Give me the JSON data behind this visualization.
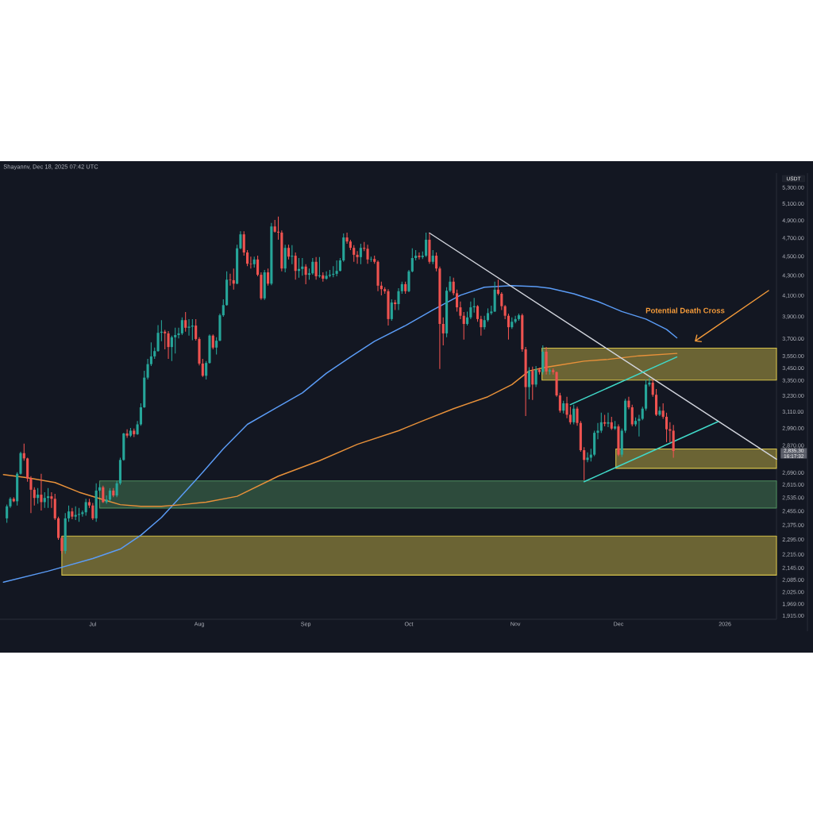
{
  "chart_data": {
    "type": "candlestick",
    "ylabel": "USDT",
    "log": true,
    "xlim": [
      "2025-06-04",
      "2026-01-16"
    ],
    "ylim": [
      1900,
      5490
    ],
    "xticks": [
      {
        "value": "2025-07-01",
        "label": "Jul"
      },
      {
        "value": "2025-08-01",
        "label": "Aug"
      },
      {
        "value": "2025-09-01",
        "label": "Sep"
      },
      {
        "value": "2025-10-01",
        "label": "Oct"
      },
      {
        "value": "2025-11-01",
        "label": "Nov"
      },
      {
        "value": "2025-12-01",
        "label": "Dec"
      },
      {
        "value": "2026-01-01",
        "label": "2026"
      }
    ],
    "yticks": [
      {
        "value": 1915,
        "label": "1,915.00"
      },
      {
        "value": 1969,
        "label": "1,969.00"
      },
      {
        "value": 2025,
        "label": "2,025.00"
      },
      {
        "value": 2085,
        "label": "2,085.00"
      },
      {
        "value": 2145,
        "label": "2,145.00"
      },
      {
        "value": 2215,
        "label": "2,215.00"
      },
      {
        "value": 2295,
        "label": "2,295.00"
      },
      {
        "value": 2375,
        "label": "2,375.00"
      },
      {
        "value": 2455,
        "label": "2,455.00"
      },
      {
        "value": 2535,
        "label": "2,535.00"
      },
      {
        "value": 2615,
        "label": "2,615.00"
      },
      {
        "value": 2690,
        "label": "2,690.00"
      },
      {
        "value": 2870,
        "label": "2,870.00"
      },
      {
        "value": 2990,
        "label": "2,990.00"
      },
      {
        "value": 3110,
        "label": "3,110.00"
      },
      {
        "value": 3230,
        "label": "3,230.00"
      },
      {
        "value": 3350,
        "label": "3,350.00"
      },
      {
        "value": 3450,
        "label": "3,450.00"
      },
      {
        "value": 3550,
        "label": "3,550.00"
      },
      {
        "value": 3700,
        "label": "3,700.00"
      },
      {
        "value": 3900,
        "label": "3,900.00"
      },
      {
        "value": 4100,
        "label": "4,100.00"
      },
      {
        "value": 4300,
        "label": "4,300.00"
      },
      {
        "value": 4500,
        "label": "4,500.00"
      },
      {
        "value": 4700,
        "label": "4,700.00"
      },
      {
        "value": 4900,
        "label": "4,900.00"
      },
      {
        "value": 5100,
        "label": "5,100.00"
      },
      {
        "value": 5300,
        "label": "5,300.00"
      }
    ],
    "x": [
      "2025-06-06",
      "2025-06-07",
      "2025-06-08",
      "2025-06-09",
      "2025-06-10",
      "2025-06-11",
      "2025-06-12",
      "2025-06-13",
      "2025-06-14",
      "2025-06-15",
      "2025-06-16",
      "2025-06-17",
      "2025-06-18",
      "2025-06-19",
      "2025-06-20",
      "2025-06-21",
      "2025-06-22",
      "2025-06-23",
      "2025-06-24",
      "2025-06-25",
      "2025-06-26",
      "2025-06-27",
      "2025-06-28",
      "2025-06-29",
      "2025-06-30",
      "2025-07-01",
      "2025-07-02",
      "2025-07-03",
      "2025-07-04",
      "2025-07-05",
      "2025-07-06",
      "2025-07-07",
      "2025-07-08",
      "2025-07-09",
      "2025-07-10",
      "2025-07-11",
      "2025-07-12",
      "2025-07-13",
      "2025-07-14",
      "2025-07-15",
      "2025-07-16",
      "2025-07-17",
      "2025-07-18",
      "2025-07-19",
      "2025-07-20",
      "2025-07-21",
      "2025-07-22",
      "2025-07-23",
      "2025-07-24",
      "2025-07-25",
      "2025-07-26",
      "2025-07-27",
      "2025-07-28",
      "2025-07-29",
      "2025-07-30",
      "2025-07-31",
      "2025-08-01",
      "2025-08-02",
      "2025-08-03",
      "2025-08-04",
      "2025-08-05",
      "2025-08-06",
      "2025-08-07",
      "2025-08-08",
      "2025-08-09",
      "2025-08-10",
      "2025-08-11",
      "2025-08-12",
      "2025-08-13",
      "2025-08-14",
      "2025-08-15",
      "2025-08-16",
      "2025-08-17",
      "2025-08-18",
      "2025-08-19",
      "2025-08-20",
      "2025-08-21",
      "2025-08-22",
      "2025-08-23",
      "2025-08-24",
      "2025-08-25",
      "2025-08-26",
      "2025-08-27",
      "2025-08-28",
      "2025-08-29",
      "2025-08-30",
      "2025-08-31",
      "2025-09-01",
      "2025-09-02",
      "2025-09-03",
      "2025-09-04",
      "2025-09-05",
      "2025-09-06",
      "2025-09-07",
      "2025-09-08",
      "2025-09-09",
      "2025-09-10",
      "2025-09-11",
      "2025-09-12",
      "2025-09-13",
      "2025-09-14",
      "2025-09-15",
      "2025-09-16",
      "2025-09-17",
      "2025-09-18",
      "2025-09-19",
      "2025-09-20",
      "2025-09-21",
      "2025-09-22",
      "2025-09-23",
      "2025-09-24",
      "2025-09-25",
      "2025-09-26",
      "2025-09-27",
      "2025-09-28",
      "2025-09-29",
      "2025-09-30",
      "2025-10-01",
      "2025-10-02",
      "2025-10-03",
      "2025-10-04",
      "2025-10-05",
      "2025-10-06",
      "2025-10-07",
      "2025-10-08",
      "2025-10-09",
      "2025-10-10",
      "2025-10-11",
      "2025-10-12",
      "2025-10-13",
      "2025-10-14",
      "2025-10-15",
      "2025-10-16",
      "2025-10-17",
      "2025-10-18",
      "2025-10-19",
      "2025-10-20",
      "2025-10-21",
      "2025-10-22",
      "2025-10-23",
      "2025-10-24",
      "2025-10-25",
      "2025-10-26",
      "2025-10-27",
      "2025-10-28",
      "2025-10-29",
      "2025-10-30",
      "2025-10-31",
      "2025-11-01",
      "2025-11-02",
      "2025-11-03",
      "2025-11-04",
      "2025-11-05",
      "2025-11-06",
      "2025-11-07",
      "2025-11-08",
      "2025-11-09",
      "2025-11-10",
      "2025-11-11",
      "2025-11-12",
      "2025-11-13",
      "2025-11-14",
      "2025-11-15",
      "2025-11-16",
      "2025-11-17",
      "2025-11-18",
      "2025-11-19",
      "2025-11-20",
      "2025-11-21",
      "2025-11-22",
      "2025-11-23",
      "2025-11-24",
      "2025-11-25",
      "2025-11-26",
      "2025-11-27",
      "2025-11-28",
      "2025-11-29",
      "2025-11-30",
      "2025-12-01",
      "2025-12-02",
      "2025-12-03",
      "2025-12-04",
      "2025-12-05",
      "2025-12-06",
      "2025-12-07",
      "2025-12-08",
      "2025-12-09",
      "2025-12-10",
      "2025-12-11",
      "2025-12-12",
      "2025-12-13",
      "2025-12-14",
      "2025-12-15",
      "2025-12-16",
      "2025-12-17"
    ],
    "ohlc": [
      [
        2415,
        2495,
        2390,
        2485
      ],
      [
        2485,
        2540,
        2475,
        2530
      ],
      [
        2530,
        2540,
        2510,
        2515
      ],
      [
        2515,
        2695,
        2490,
        2685
      ],
      [
        2685,
        2830,
        2680,
        2820
      ],
      [
        2820,
        2885,
        2770,
        2785
      ],
      [
        2785,
        2790,
        2635,
        2655
      ],
      [
        2655,
        2670,
        2445,
        2585
      ],
      [
        2585,
        2600,
        2490,
        2535
      ],
      [
        2535,
        2595,
        2500,
        2555
      ],
      [
        2555,
        2685,
        2460,
        2510
      ],
      [
        2510,
        2570,
        2475,
        2535
      ],
      [
        2535,
        2595,
        2475,
        2545
      ],
      [
        2545,
        2570,
        2475,
        2530
      ],
      [
        2530,
        2560,
        2405,
        2415
      ],
      [
        2415,
        2425,
        2295,
        2305
      ],
      [
        2305,
        2315,
        2220,
        2235
      ],
      [
        2235,
        2445,
        2220,
        2415
      ],
      [
        2415,
        2490,
        2395,
        2455
      ],
      [
        2455,
        2475,
        2410,
        2425
      ],
      [
        2425,
        2485,
        2405,
        2435
      ],
      [
        2435,
        2475,
        2395,
        2440
      ],
      [
        2440,
        2460,
        2425,
        2450
      ],
      [
        2450,
        2530,
        2430,
        2510
      ],
      [
        2510,
        2530,
        2475,
        2490
      ],
      [
        2490,
        2505,
        2405,
        2415
      ],
      [
        2415,
        2625,
        2395,
        2580
      ],
      [
        2580,
        2620,
        2570,
        2600
      ],
      [
        2600,
        2610,
        2505,
        2510
      ],
      [
        2510,
        2550,
        2500,
        2525
      ],
      [
        2525,
        2595,
        2515,
        2580
      ],
      [
        2580,
        2595,
        2540,
        2550
      ],
      [
        2550,
        2640,
        2540,
        2625
      ],
      [
        2625,
        2790,
        2615,
        2775
      ],
      [
        2775,
        2960,
        2770,
        2955
      ],
      [
        2955,
        2985,
        2925,
        2940
      ],
      [
        2940,
        2995,
        2930,
        2975
      ],
      [
        2975,
        2990,
        2930,
        2950
      ],
      [
        2950,
        3045,
        2945,
        3020
      ],
      [
        3020,
        3175,
        3010,
        3145
      ],
      [
        3145,
        3430,
        3140,
        3375
      ],
      [
        3375,
        3530,
        3360,
        3485
      ],
      [
        3485,
        3670,
        3470,
        3550
      ],
      [
        3550,
        3625,
        3530,
        3595
      ],
      [
        3595,
        3825,
        3590,
        3755
      ],
      [
        3755,
        3870,
        3680,
        3765
      ],
      [
        3765,
        3780,
        3610,
        3750
      ],
      [
        3750,
        3770,
        3530,
        3630
      ],
      [
        3630,
        3730,
        3510,
        3715
      ],
      [
        3715,
        3800,
        3575,
        3735
      ],
      [
        3735,
        3800,
        3705,
        3750
      ],
      [
        3750,
        3895,
        3735,
        3870
      ],
      [
        3870,
        3945,
        3765,
        3800
      ],
      [
        3800,
        3880,
        3730,
        3810
      ],
      [
        3810,
        3880,
        3690,
        3820
      ],
      [
        3820,
        3880,
        3685,
        3700
      ],
      [
        3700,
        3715,
        3475,
        3490
      ],
      [
        3490,
        3530,
        3380,
        3390
      ],
      [
        3390,
        3510,
        3360,
        3495
      ],
      [
        3495,
        3740,
        3490,
        3730
      ],
      [
        3730,
        3740,
        3610,
        3625
      ],
      [
        3625,
        3715,
        3565,
        3685
      ],
      [
        3685,
        3930,
        3680,
        3915
      ],
      [
        3915,
        4065,
        3900,
        4010
      ],
      [
        4010,
        4345,
        4005,
        4260
      ],
      [
        4260,
        4320,
        4200,
        4255
      ],
      [
        4255,
        4375,
        4160,
        4220
      ],
      [
        4220,
        4630,
        4215,
        4590
      ],
      [
        4590,
        4780,
        4580,
        4745
      ],
      [
        4745,
        4780,
        4510,
        4545
      ],
      [
        4545,
        4570,
        4400,
        4425
      ],
      [
        4425,
        4500,
        4375,
        4420
      ],
      [
        4420,
        4500,
        4385,
        4470
      ],
      [
        4470,
        4510,
        4295,
        4310
      ],
      [
        4310,
        4335,
        4060,
        4075
      ],
      [
        4075,
        4360,
        4060,
        4335
      ],
      [
        4335,
        4375,
        4200,
        4220
      ],
      [
        4220,
        4875,
        4205,
        4835
      ],
      [
        4835,
        4910,
        4765,
        4775
      ],
      [
        4775,
        4950,
        4685,
        4765
      ],
      [
        4765,
        4790,
        4345,
        4375
      ],
      [
        4375,
        4630,
        4335,
        4595
      ],
      [
        4595,
        4630,
        4470,
        4500
      ],
      [
        4500,
        4625,
        4420,
        4510
      ],
      [
        4510,
        4545,
        4260,
        4350
      ],
      [
        4350,
        4485,
        4280,
        4370
      ],
      [
        4370,
        4485,
        4300,
        4395
      ],
      [
        4395,
        4420,
        4215,
        4310
      ],
      [
        4310,
        4375,
        4260,
        4325
      ],
      [
        4325,
        4485,
        4310,
        4445
      ],
      [
        4445,
        4495,
        4260,
        4295
      ],
      [
        4295,
        4495,
        4280,
        4305
      ],
      [
        4305,
        4335,
        4240,
        4270
      ],
      [
        4270,
        4345,
        4260,
        4300
      ],
      [
        4300,
        4360,
        4285,
        4310
      ],
      [
        4310,
        4400,
        4285,
        4320
      ],
      [
        4320,
        4460,
        4295,
        4350
      ],
      [
        4350,
        4485,
        4345,
        4460
      ],
      [
        4460,
        4755,
        4445,
        4710
      ],
      [
        4710,
        4765,
        4640,
        4665
      ],
      [
        4665,
        4685,
        4570,
        4595
      ],
      [
        4595,
        4625,
        4445,
        4520
      ],
      [
        4520,
        4560,
        4425,
        4495
      ],
      [
        4495,
        4640,
        4420,
        4595
      ],
      [
        4595,
        4660,
        4560,
        4585
      ],
      [
        4585,
        4630,
        4425,
        4470
      ],
      [
        4470,
        4500,
        4445,
        4475
      ],
      [
        4475,
        4510,
        4425,
        4445
      ],
      [
        4445,
        4460,
        4145,
        4200
      ],
      [
        4200,
        4240,
        4105,
        4165
      ],
      [
        4165,
        4185,
        4120,
        4145
      ],
      [
        4145,
        4165,
        3820,
        3880
      ],
      [
        3880,
        4065,
        3865,
        4035
      ],
      [
        4035,
        4060,
        3965,
        4020
      ],
      [
        4020,
        4175,
        3965,
        4145
      ],
      [
        4145,
        4240,
        4120,
        4215
      ],
      [
        4215,
        4240,
        4120,
        4145
      ],
      [
        4145,
        4360,
        4135,
        4345
      ],
      [
        4345,
        4590,
        4335,
        4485
      ],
      [
        4485,
        4570,
        4460,
        4510
      ],
      [
        4510,
        4545,
        4470,
        4495
      ],
      [
        4495,
        4555,
        4475,
        4510
      ],
      [
        4510,
        4765,
        4495,
        4685
      ],
      [
        4685,
        4755,
        4425,
        4445
      ],
      [
        4445,
        4570,
        4420,
        4510
      ],
      [
        4510,
        4545,
        4345,
        4375
      ],
      [
        4375,
        4395,
        3445,
        3835
      ],
      [
        3835,
        3895,
        3645,
        3750
      ],
      [
        3750,
        4185,
        3715,
        4150
      ],
      [
        4150,
        4295,
        4135,
        4240
      ],
      [
        4240,
        4280,
        4105,
        4125
      ],
      [
        4125,
        4160,
        3950,
        3990
      ],
      [
        3990,
        4045,
        3880,
        3910
      ],
      [
        3910,
        3945,
        3695,
        3835
      ],
      [
        3835,
        3950,
        3820,
        3895
      ],
      [
        3895,
        4045,
        3880,
        3990
      ],
      [
        3990,
        4080,
        3940,
        4000
      ],
      [
        4000,
        4010,
        3855,
        3880
      ],
      [
        3880,
        3910,
        3730,
        3805
      ],
      [
        3805,
        3910,
        3785,
        3870
      ],
      [
        3870,
        3980,
        3855,
        3935
      ],
      [
        3935,
        4005,
        3920,
        3950
      ],
      [
        3950,
        4240,
        3945,
        4160
      ],
      [
        4160,
        4260,
        4105,
        4120
      ],
      [
        4120,
        4135,
        3965,
        4000
      ],
      [
        4000,
        4010,
        3880,
        3910
      ],
      [
        3910,
        3930,
        3695,
        3805
      ],
      [
        3805,
        3895,
        3790,
        3855
      ],
      [
        3855,
        3910,
        3840,
        3880
      ],
      [
        3880,
        3930,
        3865,
        3915
      ],
      [
        3915,
        3930,
        3590,
        3610
      ],
      [
        3610,
        3630,
        3080,
        3300
      ],
      [
        3300,
        3460,
        3205,
        3430
      ],
      [
        3430,
        3465,
        3200,
        3320
      ],
      [
        3320,
        3470,
        3300,
        3440
      ],
      [
        3440,
        3455,
        3400,
        3420
      ],
      [
        3420,
        3645,
        3400,
        3590
      ],
      [
        3590,
        3630,
        3400,
        3425
      ],
      [
        3425,
        3450,
        3400,
        3435
      ],
      [
        3435,
        3450,
        3400,
        3420
      ],
      [
        3420,
        3425,
        3225,
        3235
      ],
      [
        3235,
        3255,
        3105,
        3120
      ],
      [
        3120,
        3195,
        3100,
        3175
      ],
      [
        3175,
        3225,
        3065,
        3090
      ],
      [
        3090,
        3150,
        3020,
        3035
      ],
      [
        3035,
        3165,
        3020,
        3135
      ],
      [
        3135,
        3150,
        3010,
        3030
      ],
      [
        3030,
        3045,
        2830,
        2840
      ],
      [
        2840,
        2860,
        2645,
        2775
      ],
      [
        2775,
        2825,
        2760,
        2790
      ],
      [
        2790,
        2850,
        2765,
        2810
      ],
      [
        2810,
        2975,
        2800,
        2960
      ],
      [
        2960,
        3030,
        2915,
        2975
      ],
      [
        2975,
        3105,
        2960,
        3035
      ],
      [
        3035,
        3090,
        3005,
        3025
      ],
      [
        3025,
        3105,
        3000,
        3035
      ],
      [
        3035,
        3075,
        2980,
        2990
      ],
      [
        2990,
        3045,
        2980,
        3005
      ],
      [
        3005,
        3020,
        2800,
        2810
      ],
      [
        2810,
        2990,
        2795,
        2975
      ],
      [
        2975,
        3210,
        2960,
        3195
      ],
      [
        3195,
        3225,
        3130,
        3145
      ],
      [
        3145,
        3165,
        3005,
        3020
      ],
      [
        3020,
        3070,
        3005,
        3045
      ],
      [
        3045,
        3090,
        2935,
        3060
      ],
      [
        3060,
        3150,
        3050,
        3135
      ],
      [
        3135,
        3360,
        3120,
        3320
      ],
      [
        3320,
        3375,
        3305,
        3335
      ],
      [
        3335,
        3360,
        3225,
        3240
      ],
      [
        3240,
        3285,
        3080,
        3090
      ],
      [
        3090,
        3150,
        3080,
        3120
      ],
      [
        3120,
        3175,
        3060,
        3075
      ],
      [
        3075,
        3105,
        2895,
        2985
      ],
      [
        2985,
        3035,
        2895,
        2975
      ],
      [
        2975,
        3015,
        2790,
        2835.3
      ]
    ],
    "colors": [
      "#26a69a",
      "#26a69a",
      "#ef5350",
      "#26a69a",
      "#26a69a",
      "#ef5350",
      "#ef5350",
      "#ef5350",
      "#ef5350",
      "#26a69a",
      "#ef5350",
      "#26a69a",
      "#26a69a",
      "#ef5350",
      "#ef5350",
      "#ef5350",
      "#ef5350",
      "#26a69a",
      "#26a69a",
      "#ef5350",
      "#26a69a",
      "#26a69a",
      "#26a69a",
      "#26a69a",
      "#ef5350",
      "#ef5350",
      "#26a69a",
      "#26a69a",
      "#ef5350",
      "#26a69a",
      "#26a69a",
      "#ef5350",
      "#26a69a",
      "#26a69a",
      "#26a69a",
      "#ef5350",
      "#26a69a",
      "#ef5350",
      "#26a69a",
      "#26a69a",
      "#26a69a",
      "#26a69a",
      "#26a69a",
      "#26a69a",
      "#26a69a",
      "#26a69a",
      "#ef5350",
      "#ef5350",
      "#26a69a",
      "#26a69a",
      "#26a69a",
      "#26a69a",
      "#ef5350",
      "#26a69a",
      "#26a69a",
      "#ef5350",
      "#ef5350",
      "#ef5350",
      "#26a69a",
      "#26a69a",
      "#ef5350",
      "#26a69a",
      "#26a69a",
      "#26a69a",
      "#26a69a",
      "#ef5350",
      "#ef5350",
      "#26a69a",
      "#26a69a",
      "#ef5350",
      "#ef5350",
      "#ef5350",
      "#26a69a",
      "#ef5350",
      "#ef5350",
      "#26a69a",
      "#ef5350",
      "#26a69a",
      "#ef5350",
      "#ef5350",
      "#ef5350",
      "#26a69a",
      "#ef5350",
      "#26a69a",
      "#ef5350",
      "#26a69a",
      "#26a69a",
      "#ef5350",
      "#26a69a",
      "#26a69a",
      "#ef5350",
      "#26a69a",
      "#ef5350",
      "#26a69a",
      "#26a69a",
      "#26a69a",
      "#26a69a",
      "#26a69a",
      "#26a69a",
      "#ef5350",
      "#ef5350",
      "#ef5350",
      "#ef5350",
      "#26a69a",
      "#ef5350",
      "#ef5350",
      "#26a69a",
      "#ef5350",
      "#ef5350",
      "#ef5350",
      "#ef5350",
      "#ef5350",
      "#26a69a",
      "#ef5350",
      "#26a69a",
      "#26a69a",
      "#ef5350",
      "#26a69a",
      "#26a69a",
      "#26a69a",
      "#ef5350",
      "#26a69a",
      "#26a69a",
      "#ef5350",
      "#26a69a",
      "#ef5350",
      "#ef5350",
      "#ef5350",
      "#26a69a",
      "#26a69a",
      "#ef5350",
      "#ef5350",
      "#ef5350",
      "#ef5350",
      "#26a69a",
      "#26a69a",
      "#26a69a",
      "#ef5350",
      "#ef5350",
      "#26a69a",
      "#26a69a",
      "#26a69a",
      "#26a69a",
      "#ef5350",
      "#ef5350",
      "#ef5350",
      "#ef5350",
      "#26a69a",
      "#26a69a",
      "#26a69a",
      "#ef5350",
      "#ef5350",
      "#26a69a",
      "#ef5350",
      "#26a69a",
      "#ef5350",
      "#26a69a",
      "#ef5350",
      "#26a69a",
      "#ef5350",
      "#ef5350",
      "#ef5350",
      "#26a69a",
      "#ef5350",
      "#ef5350",
      "#26a69a",
      "#ef5350",
      "#ef5350",
      "#ef5350",
      "#26a69a",
      "#26a69a",
      "#26a69a",
      "#26a69a",
      "#26a69a",
      "#ef5350",
      "#26a69a",
      "#ef5350",
      "#26a69a",
      "#ef5350",
      "#26a69a",
      "#26a69a",
      "#ef5350",
      "#ef5350",
      "#26a69a",
      "#26a69a",
      "#26a69a",
      "#26a69a",
      "#26a69a",
      "#ef5350",
      "#ef5350",
      "#26a69a",
      "#ef5350",
      "#ef5350",
      "#ef5350",
      "#ef5350"
    ],
    "series": [
      {
        "type": "line",
        "color": "#d6c24a",
        "x": [
          "2025-06-22",
          "2026-01-16"
        ],
        "values": [
          2315,
          2315
        ],
        "upper": [
          2315,
          2315
        ],
        "lower": [
          2110,
          2110
        ]
      },
      {
        "type": "line",
        "color": "#4d8b5c",
        "x": [
          "2025-07-03",
          "2026-01-16"
        ],
        "values": [
          2640,
          2640
        ],
        "upper": [
          2640,
          2640
        ],
        "lower": [
          2475,
          2475
        ]
      },
      {
        "type": "line",
        "color": "#d6c24a",
        "x": [
          "2025-11-08T18:00",
          "2026-01-16"
        ],
        "values": [
          3620,
          3620
        ],
        "upper": [
          3620,
          3620
        ],
        "lower": [
          3355,
          3355
        ]
      },
      {
        "type": "line",
        "color": "#d6c24a",
        "x": [
          "2025-11-30T06:00",
          "2026-01-16"
        ],
        "values": [
          2848,
          2848
        ],
        "upper": [
          2848,
          2848
        ],
        "lower": [
          2720,
          2720
        ]
      },
      {
        "type": "line",
        "color": "#5b9cf6",
        "x": [
          "2025-06-05",
          "2025-06-18",
          "2025-07-01",
          "2025-07-09",
          "2025-07-15",
          "2025-07-21",
          "2025-07-26",
          "2025-08-01",
          "2025-08-08",
          "2025-08-15",
          "2025-08-23",
          "2025-08-31",
          "2025-09-07",
          "2025-09-14",
          "2025-09-21",
          "2025-09-30",
          "2025-10-08",
          "2025-10-16",
          "2025-10-23",
          "2025-10-31",
          "2025-11-07",
          "2025-11-11",
          "2025-11-18",
          "2025-11-25",
          "2025-12-02",
          "2025-12-09",
          "2025-12-15",
          "2025-12-18"
        ],
        "values": [
          2075,
          2130,
          2195,
          2245,
          2320,
          2420,
          2530,
          2670,
          2850,
          3020,
          3135,
          3255,
          3410,
          3545,
          3680,
          3820,
          3965,
          4105,
          4185,
          4200,
          4190,
          4175,
          4120,
          4045,
          3950,
          3880,
          3785,
          3710
        ]
      },
      {
        "type": "line",
        "color": "#e8913a",
        "x": [
          "2025-06-05",
          "2025-06-12",
          "2025-06-20",
          "2025-06-27",
          "2025-07-04",
          "2025-07-09",
          "2025-07-15",
          "2025-07-21",
          "2025-07-27",
          "2025-08-03",
          "2025-08-12",
          "2025-08-24",
          "2025-09-05",
          "2025-09-16",
          "2025-09-28",
          "2025-10-05",
          "2025-10-14",
          "2025-10-24",
          "2025-10-31",
          "2025-11-05",
          "2025-11-10",
          "2025-11-14",
          "2025-11-21",
          "2025-11-28",
          "2025-12-07",
          "2025-12-18"
        ],
        "values": [
          2680,
          2660,
          2630,
          2570,
          2525,
          2495,
          2485,
          2485,
          2495,
          2510,
          2545,
          2670,
          2770,
          2880,
          2975,
          3045,
          3135,
          3225,
          3320,
          3430,
          3460,
          3478,
          3510,
          3525,
          3555,
          3575
        ]
      },
      {
        "type": "line",
        "color": "#d1d4dc",
        "x": [
          "2025-10-07",
          "2026-01-16"
        ],
        "values": [
          4760,
          2780
        ]
      },
      {
        "type": "line",
        "color": "#40d9c9",
        "x": [
          "2025-11-17",
          "2025-12-18"
        ],
        "values": [
          3165,
          3545
        ]
      },
      {
        "type": "line",
        "color": "#40d9c9",
        "x": [
          "2025-11-21",
          "2025-12-30"
        ],
        "values": [
          2635,
          3040
        ]
      }
    ],
    "annotations": [
      "Shayannv, Dec 18, 2025 07:42 UTC",
      "Potential Death Cross",
      "2,835.30",
      "16:17:32"
    ]
  }
}
